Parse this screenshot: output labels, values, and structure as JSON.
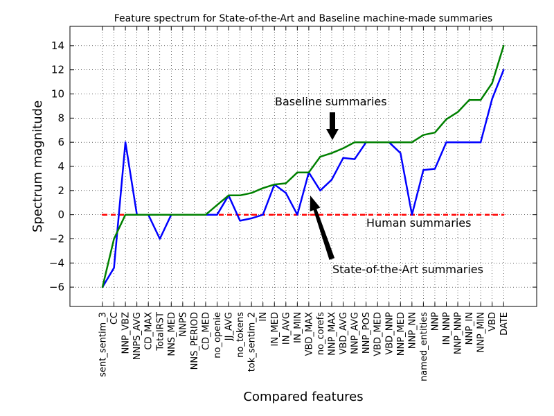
{
  "chart_data": {
    "type": "line",
    "title": "Feature spectrum for State-of-the-Art and Baseline machine-made summaries",
    "xlabel": "Compared features",
    "ylabel": "Spectrum magnitude",
    "ylim": [
      -7.6,
      15.6
    ],
    "yticks": [
      -6,
      -4,
      -2,
      0,
      2,
      4,
      6,
      8,
      10,
      12,
      14
    ],
    "grid": true,
    "categories": [
      "sent_sentim_3",
      "CC",
      "NNP_VBZ",
      "NNPS_AVG",
      "CD_MAX",
      "TotalRST",
      "NNS_MED",
      "NNPS",
      "NNS_PERIOD",
      "CD_MED",
      "no_openie",
      "JJ_AVG",
      "no_tokens",
      "tok_sentim_2",
      "IN",
      "IN_MED",
      "IN_AVG",
      "IN_MIN",
      "VBD_MAX",
      "no_corefs",
      "NNP_MAX",
      "VBD_AVG",
      "NNP_AVG",
      "NNP_POS",
      "VBD_MED",
      "VBD_NNP",
      "NNP_MED",
      "NNP_NN",
      "named_entities",
      "NNP",
      "IN_NNP",
      "NNP_NNP",
      "NNP_IN",
      "NNP_MIN",
      "VBD",
      "DATE"
    ],
    "series": [
      {
        "name": "Human summaries",
        "color": "#ff0000",
        "style": "dashed",
        "values": [
          0,
          0,
          0,
          0,
          0,
          0,
          0,
          0,
          0,
          0,
          0,
          0,
          0,
          0,
          0,
          0,
          0,
          0,
          0,
          0,
          0,
          0,
          0,
          0,
          0,
          0,
          0,
          0,
          0,
          0,
          0,
          0,
          0,
          0,
          0,
          0
        ]
      },
      {
        "name": "State-of-the-Art summaries",
        "color": "#0000ff",
        "style": "solid",
        "values": [
          -6,
          -4.4,
          6,
          0,
          0,
          -2,
          0,
          0,
          0,
          0,
          0,
          1.6,
          -0.5,
          -0.3,
          0,
          2.5,
          1.8,
          0,
          3.5,
          2,
          2.9,
          4.7,
          4.6,
          6,
          6,
          6,
          5.1,
          0,
          3.7,
          3.8,
          6,
          6,
          6,
          6,
          9.6,
          12
        ]
      },
      {
        "name": "Baseline summaries",
        "color": "#008000",
        "style": "solid",
        "values": [
          -6,
          -2,
          0,
          0,
          0,
          0,
          0,
          0,
          0,
          0,
          0.8,
          1.6,
          1.6,
          1.8,
          2.2,
          2.5,
          2.6,
          3.5,
          3.5,
          4.8,
          5.1,
          5.5,
          6,
          6,
          6,
          6,
          6,
          6,
          6.6,
          6.8,
          7.9,
          8.5,
          9.5,
          9.5,
          10.9,
          14
        ]
      }
    ],
    "annotations": [
      {
        "text": "Baseline summaries",
        "arrow": "down"
      },
      {
        "text": "Human summaries",
        "arrow": "none"
      },
      {
        "text": "State-of-the-Art summaries",
        "arrow": "up"
      }
    ]
  }
}
